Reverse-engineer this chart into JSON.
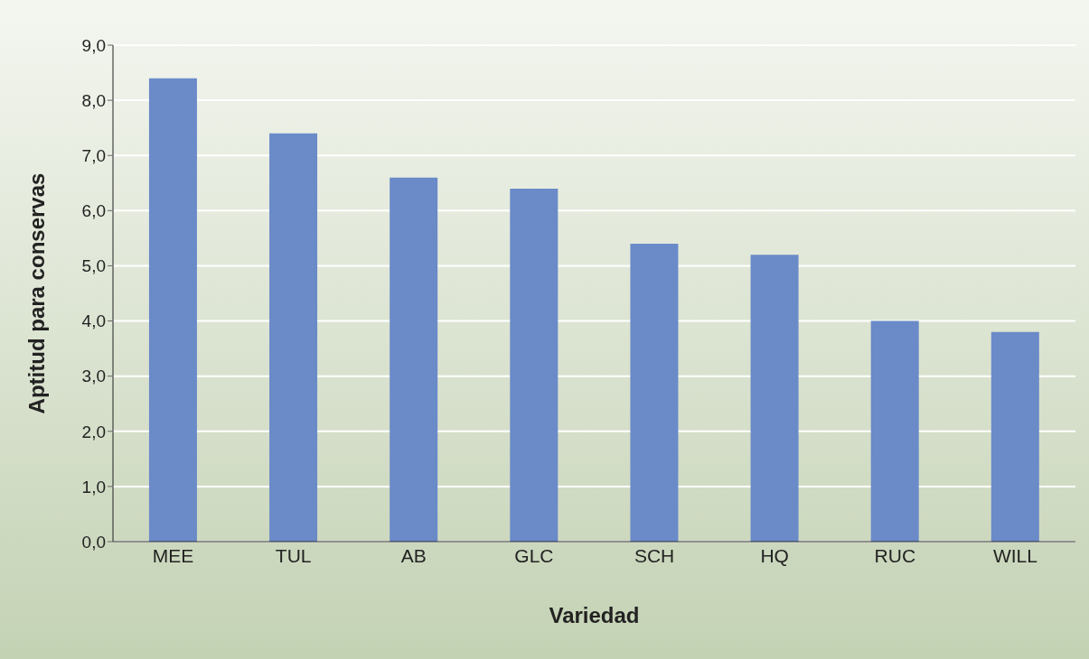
{
  "chart_data": {
    "type": "bar",
    "xlabel": "Variedad",
    "ylabel": "Aptitud para conservas",
    "categories": [
      "MEE",
      "TUL",
      "AB",
      "GLC",
      "SCH",
      "HQ",
      "RUC",
      "WILL"
    ],
    "values": [
      8.4,
      7.4,
      6.6,
      6.4,
      5.4,
      5.2,
      4.0,
      3.8
    ],
    "color": "#6a8ac8",
    "ylim": [
      0,
      9
    ],
    "yticks": [
      {
        "value": 0,
        "label": "0,0"
      },
      {
        "value": 1,
        "label": "1,0"
      },
      {
        "value": 2,
        "label": "2,0"
      },
      {
        "value": 3,
        "label": "3,0"
      },
      {
        "value": 4,
        "label": "4,0"
      },
      {
        "value": 5,
        "label": "5,0"
      },
      {
        "value": 6,
        "label": "6,0"
      },
      {
        "value": 7,
        "label": "7,0"
      },
      {
        "value": 8,
        "label": "8,0"
      },
      {
        "value": 9,
        "label": "9,0"
      }
    ],
    "grid": "y",
    "legend": false
  }
}
